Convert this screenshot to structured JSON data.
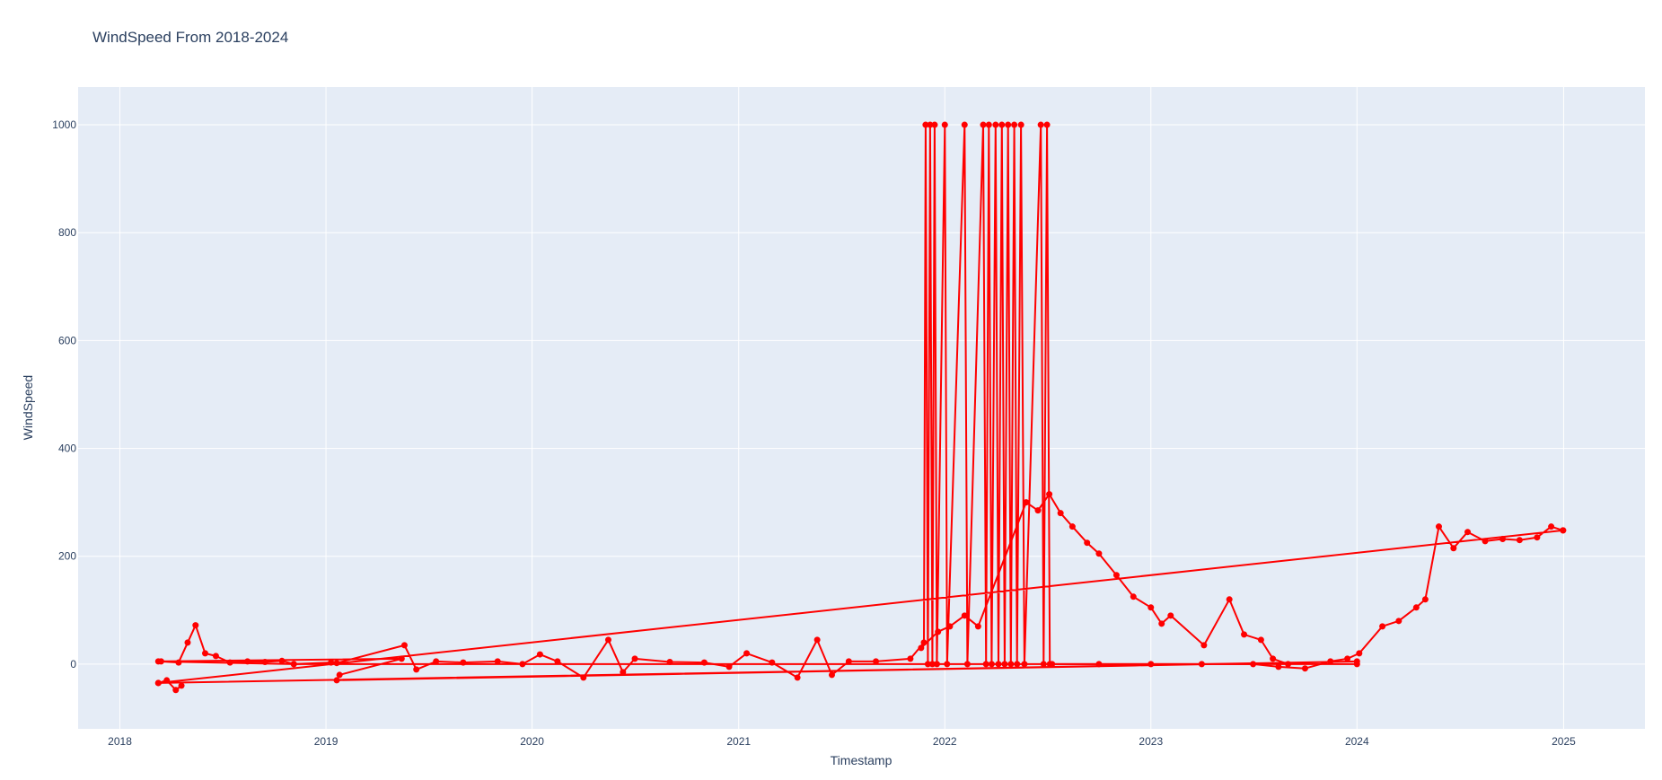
{
  "chart_data": {
    "type": "line",
    "title": "WindSpeed From 2018-2024",
    "xlabel": "Timestamp",
    "ylabel": "WindSpeed",
    "xlim": [
      "2017-10-19",
      "2025-05-25"
    ],
    "ylim": [
      -120,
      1070
    ],
    "x_ticks": [
      "2018",
      "2019",
      "2020",
      "2021",
      "2022",
      "2023",
      "2024",
      "2025"
    ],
    "y_ticks": [
      "0",
      "200",
      "400",
      "600",
      "800",
      "1000"
    ],
    "y_tick_values": [
      0,
      200,
      400,
      600,
      800,
      1000
    ],
    "grid": true,
    "colors": {
      "line": "#ff0000",
      "plot_bg": "#e5ecf6",
      "grid": "#ffffff",
      "text": "#2a3f5f"
    },
    "series": [
      {
        "mode": "lines+markers",
        "points": [
          [
            "2018-03-15",
            5
          ],
          [
            "2018-04-15",
            3
          ],
          [
            "2018-05-01",
            40
          ],
          [
            "2018-05-15",
            72
          ],
          [
            "2018-06-01",
            20
          ],
          [
            "2018-06-20",
            15
          ],
          [
            "2018-07-15",
            3
          ],
          [
            "2018-08-15",
            5
          ],
          [
            "2018-09-15",
            4
          ],
          [
            "2018-10-15",
            6
          ],
          [
            "2018-11-05",
            0
          ],
          [
            "2019-01-10",
            3
          ],
          [
            "2019-01-20",
            2
          ],
          [
            "2019-05-20",
            35
          ],
          [
            "2019-06-10",
            -10
          ],
          [
            "2019-07-15",
            5
          ],
          [
            "2019-09-01",
            3
          ],
          [
            "2019-11-01",
            5
          ],
          [
            "2019-12-15",
            0
          ],
          [
            "2020-01-15",
            18
          ],
          [
            "2020-02-15",
            5
          ],
          [
            "2020-04-01",
            -25
          ],
          [
            "2020-05-15",
            45
          ],
          [
            "2020-06-10",
            -15
          ],
          [
            "2020-07-01",
            10
          ],
          [
            "2020-09-01",
            4
          ],
          [
            "2020-11-01",
            3
          ],
          [
            "2020-12-15",
            -5
          ],
          [
            "2021-01-15",
            20
          ],
          [
            "2021-03-01",
            3
          ],
          [
            "2021-04-15",
            -25
          ],
          [
            "2021-05-20",
            45
          ],
          [
            "2021-06-15",
            -20
          ],
          [
            "2021-07-15",
            5
          ],
          [
            "2021-09-01",
            5
          ],
          [
            "2021-11-01",
            10
          ],
          [
            "2021-11-25",
            40
          ],
          [
            "2021-11-28",
            1000
          ],
          [
            "2021-12-02",
            0
          ],
          [
            "2021-12-06",
            1000
          ],
          [
            "2021-12-10",
            0
          ],
          [
            "2021-12-14",
            1000
          ],
          [
            "2021-12-18",
            0
          ],
          [
            "2022-01-01",
            1000
          ],
          [
            "2022-01-05",
            0
          ],
          [
            "2022-02-05",
            1000
          ],
          [
            "2022-02-10",
            0
          ],
          [
            "2022-03-10",
            1000
          ],
          [
            "2022-03-15",
            0
          ],
          [
            "2022-03-20",
            1000
          ],
          [
            "2022-03-25",
            0
          ],
          [
            "2022-04-01",
            1000
          ],
          [
            "2022-04-06",
            0
          ],
          [
            "2022-04-12",
            1000
          ],
          [
            "2022-04-17",
            0
          ],
          [
            "2022-04-23",
            1000
          ],
          [
            "2022-04-28",
            0
          ],
          [
            "2022-05-04",
            1000
          ],
          [
            "2022-05-09",
            0
          ],
          [
            "2022-05-16",
            1000
          ],
          [
            "2022-05-22",
            0
          ],
          [
            "2022-06-20",
            1000
          ],
          [
            "2022-06-25",
            0
          ],
          [
            "2022-07-01",
            1000
          ],
          [
            "2022-07-06",
            0
          ],
          [
            "2022-07-10",
            0
          ],
          [
            "2022-10-01",
            0
          ],
          [
            "2023-01-01",
            0
          ],
          [
            "2023-04-01",
            0
          ],
          [
            "2023-07-01",
            0
          ],
          [
            "2023-08-15",
            -5
          ],
          [
            "2023-10-01",
            -8
          ],
          [
            "2023-11-15",
            5
          ],
          [
            "2023-12-15",
            10
          ],
          [
            "2024-01-05",
            20
          ],
          [
            "2024-02-15",
            70
          ],
          [
            "2024-03-15",
            80
          ],
          [
            "2024-04-15",
            105
          ],
          [
            "2024-05-01",
            120
          ],
          [
            "2024-05-25",
            255
          ],
          [
            "2024-06-20",
            215
          ],
          [
            "2024-07-15",
            245
          ],
          [
            "2024-08-15",
            228
          ],
          [
            "2024-09-15",
            232
          ],
          [
            "2024-10-15",
            230
          ],
          [
            "2024-11-15",
            235
          ],
          [
            "2024-12-10",
            255
          ],
          [
            "2024-12-31",
            248
          ],
          [
            "2024-12-31",
            248
          ],
          [
            "2018-03-10",
            -35
          ],
          [
            "2018-03-25",
            -30
          ],
          [
            "2018-04-10",
            -48
          ],
          [
            "2018-04-20",
            -40
          ]
        ]
      },
      {
        "mode": "lines+markers",
        "points": [
          [
            "2021-11-20",
            30
          ],
          [
            "2021-12-20",
            60
          ],
          [
            "2022-01-10",
            70
          ],
          [
            "2022-02-05",
            90
          ],
          [
            "2022-03-01",
            70
          ],
          [
            "2022-05-25",
            300
          ],
          [
            "2022-06-15",
            285
          ],
          [
            "2022-07-05",
            315
          ],
          [
            "2022-07-25",
            280
          ],
          [
            "2022-08-15",
            255
          ],
          [
            "2022-09-10",
            225
          ],
          [
            "2022-10-01",
            205
          ],
          [
            "2022-11-01",
            165
          ],
          [
            "2022-12-01",
            125
          ],
          [
            "2023-01-01",
            105
          ],
          [
            "2023-01-20",
            75
          ],
          [
            "2023-02-05",
            90
          ],
          [
            "2023-04-05",
            35
          ],
          [
            "2023-05-20",
            120
          ],
          [
            "2023-06-15",
            55
          ],
          [
            "2023-07-15",
            45
          ],
          [
            "2023-08-05",
            10
          ],
          [
            "2023-09-01",
            0
          ]
        ]
      },
      {
        "mode": "lines+markers",
        "points": [
          [
            "2018-03-10",
            -35
          ],
          [
            "2024-01-01",
            5
          ],
          [
            "2019-01-20",
            -30
          ],
          [
            "2019-01-25",
            -20
          ],
          [
            "2019-05-15",
            10
          ],
          [
            "2018-03-10",
            5
          ],
          [
            "2018-11-05",
            0
          ],
          [
            "2024-01-01",
            0
          ]
        ]
      }
    ]
  }
}
